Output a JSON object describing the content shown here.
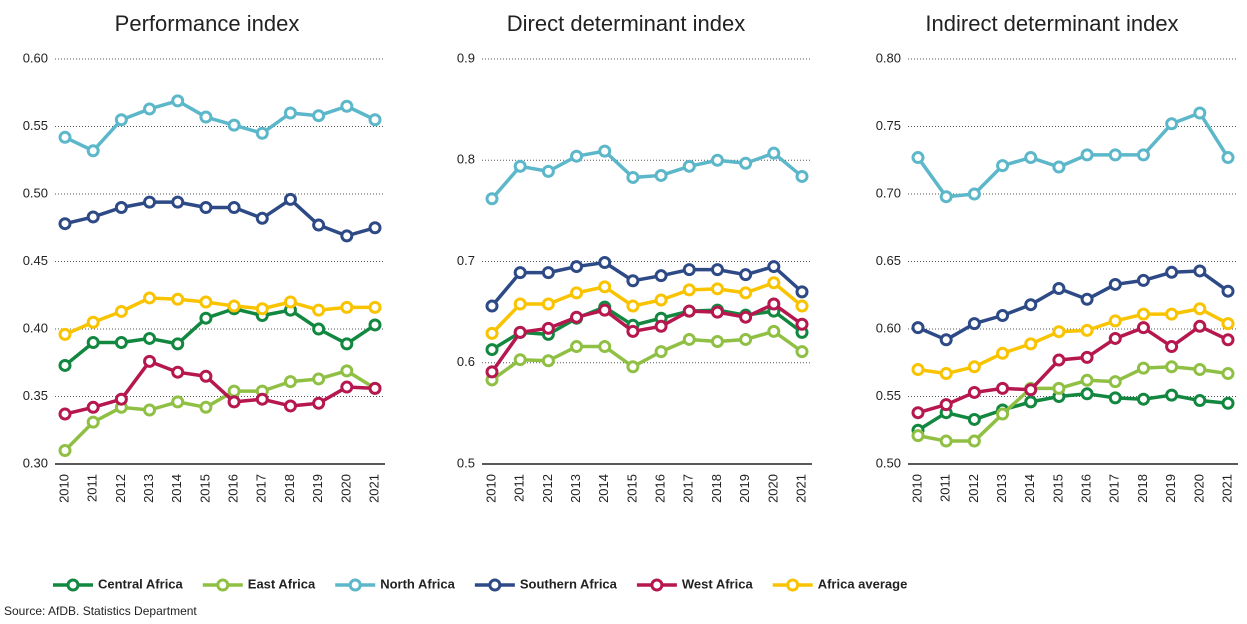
{
  "chart_data": [
    {
      "type": "line",
      "title": "Performance index",
      "categories": [
        "2010",
        "2011",
        "2012",
        "2013",
        "2014",
        "2015",
        "2016",
        "2017",
        "2018",
        "2019",
        "2020",
        "2021"
      ],
      "ylim": [
        0.3,
        0.6
      ],
      "yticks": [
        {
          "value": 0.3,
          "label": "0.30"
        },
        {
          "value": 0.35,
          "label": "0.35"
        },
        {
          "value": 0.4,
          "label": "0.40"
        },
        {
          "value": 0.45,
          "label": "0.45"
        },
        {
          "value": 0.5,
          "label": "0.50"
        },
        {
          "value": 0.55,
          "label": "0.55"
        },
        {
          "value": 0.6,
          "label": "0.60"
        }
      ],
      "grid": true,
      "series": [
        {
          "values": [
            0.373,
            0.39,
            0.39,
            0.393,
            0.389,
            0.408,
            0.415,
            0.41,
            0.414,
            0.4,
            0.389,
            0.403
          ]
        },
        {
          "values": [
            0.31,
            0.331,
            0.342,
            0.34,
            0.346,
            0.342,
            0.354,
            0.354,
            0.361,
            0.363,
            0.369,
            0.356
          ]
        },
        {
          "values": [
            0.542,
            0.532,
            0.555,
            0.563,
            0.569,
            0.557,
            0.551,
            0.545,
            0.56,
            0.558,
            0.565,
            0.555
          ]
        },
        {
          "values": [
            0.478,
            0.483,
            0.49,
            0.494,
            0.494,
            0.49,
            0.49,
            0.482,
            0.496,
            0.477,
            0.469,
            0.475
          ]
        },
        {
          "values": [
            0.337,
            0.342,
            0.348,
            0.376,
            0.368,
            0.365,
            0.346,
            0.348,
            0.343,
            0.345,
            0.357,
            0.356
          ]
        },
        {
          "values": [
            0.396,
            0.405,
            0.413,
            0.423,
            0.422,
            0.42,
            0.417,
            0.415,
            0.42,
            0.414,
            0.416,
            0.416
          ]
        }
      ]
    },
    {
      "type": "line",
      "title": "Direct determinant index",
      "categories": [
        "2010",
        "2011",
        "2012",
        "2013",
        "2014",
        "2015",
        "2016",
        "2017",
        "2018",
        "2019",
        "2020",
        "2021"
      ],
      "ylim": [
        0.5,
        0.9
      ],
      "yticks": [
        0.5,
        0.6,
        0.7,
        0.8,
        0.9
      ],
      "grid": true,
      "series": [
        {
          "values": [
            0.613,
            0.63,
            0.628,
            0.644,
            0.655,
            0.637,
            0.644,
            0.651,
            0.652,
            0.647,
            0.651,
            0.63
          ]
        },
        {
          "values": [
            0.583,
            0.603,
            0.602,
            0.616,
            0.616,
            0.596,
            0.611,
            0.623,
            0.621,
            0.623,
            0.631,
            0.611
          ]
        },
        {
          "values": [
            0.762,
            0.794,
            0.789,
            0.804,
            0.809,
            0.783,
            0.785,
            0.794,
            0.8,
            0.797,
            0.807,
            0.784
          ]
        },
        {
          "values": [
            0.656,
            0.689,
            0.689,
            0.695,
            0.699,
            0.681,
            0.686,
            0.692,
            0.692,
            0.687,
            0.695,
            0.67
          ]
        },
        {
          "values": [
            0.591,
            0.63,
            0.634,
            0.645,
            0.652,
            0.631,
            0.636,
            0.651,
            0.65,
            0.645,
            0.658,
            0.638
          ]
        },
        {
          "values": [
            0.629,
            0.658,
            0.658,
            0.669,
            0.675,
            0.656,
            0.662,
            0.672,
            0.673,
            0.669,
            0.679,
            0.656
          ]
        }
      ]
    },
    {
      "type": "line",
      "title": "Indirect determinant index",
      "categories": [
        "2010",
        "2011",
        "2012",
        "2013",
        "2014",
        "2015",
        "2016",
        "2017",
        "2018",
        "2019",
        "2020",
        "2021"
      ],
      "ylim": [
        0.5,
        0.8
      ],
      "yticks": [
        {
          "value": 0.5,
          "label": "0.50"
        },
        {
          "value": 0.55,
          "label": "0.55"
        },
        {
          "value": 0.6,
          "label": "0.60"
        },
        {
          "value": 0.65,
          "label": "0.65"
        },
        {
          "value": 0.7,
          "label": "0.70"
        },
        {
          "value": 0.75,
          "label": "0.75"
        },
        {
          "value": 0.8,
          "label": "0.80"
        }
      ],
      "grid": true,
      "series": [
        {
          "values": [
            0.525,
            0.538,
            0.533,
            0.54,
            0.546,
            0.55,
            0.552,
            0.549,
            0.548,
            0.551,
            0.547,
            0.545
          ]
        },
        {
          "values": [
            0.521,
            0.517,
            0.517,
            0.537,
            0.556,
            0.556,
            0.562,
            0.561,
            0.571,
            0.572,
            0.57,
            0.567
          ]
        },
        {
          "values": [
            0.727,
            0.698,
            0.7,
            0.721,
            0.727,
            0.72,
            0.729,
            0.729,
            0.729,
            0.752,
            0.76,
            0.727
          ]
        },
        {
          "values": [
            0.601,
            0.592,
            0.604,
            0.61,
            0.618,
            0.63,
            0.622,
            0.633,
            0.636,
            0.642,
            0.643,
            0.628
          ]
        },
        {
          "values": [
            0.538,
            0.544,
            0.553,
            0.556,
            0.555,
            0.577,
            0.579,
            0.593,
            0.601,
            0.587,
            0.602,
            0.592
          ]
        },
        {
          "values": [
            0.57,
            0.567,
            0.572,
            0.582,
            0.589,
            0.598,
            0.599,
            0.606,
            0.611,
            0.611,
            0.615,
            0.604
          ]
        }
      ]
    }
  ],
  "legend": [
    {
      "name": "Central Africa",
      "color": "#12873f"
    },
    {
      "name": "East Africa",
      "color": "#8fc044"
    },
    {
      "name": "North Africa",
      "color": "#5bb7c9"
    },
    {
      "name": "Southern Africa",
      "color": "#2d4a86"
    },
    {
      "name": "West Africa",
      "color": "#b5174e"
    },
    {
      "name": "Africa average",
      "color": "#f9c300"
    }
  ],
  "source": "Source: AfDB. Statistics Department"
}
